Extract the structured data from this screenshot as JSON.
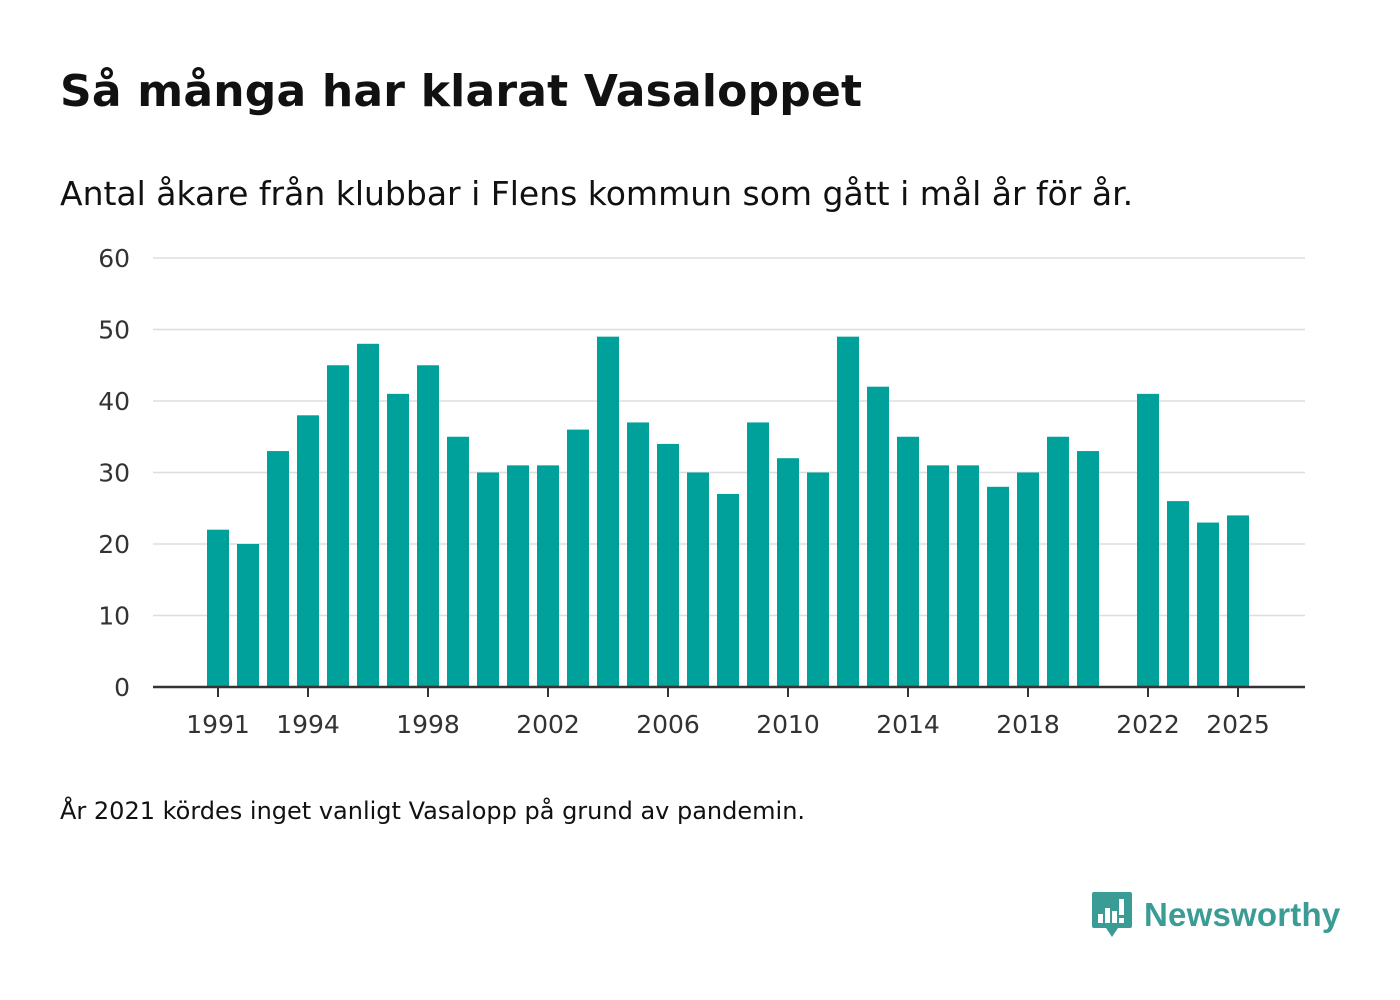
{
  "header": {
    "title": "Så många har klarat Vasaloppet",
    "subtitle": "Antal åkare från klubbar i Flens kommun som gått i mål år för år."
  },
  "footnote": "År 2021 kördes inget vanligt Vasalopp på grund av pandemin.",
  "brand": {
    "name": "Newsworthy",
    "logo_icon": "newsworthy-logo-icon",
    "color": "#3a9c94"
  },
  "colors": {
    "bar": "#00a19a",
    "grid": "#dddddd",
    "axis": "#333333"
  },
  "chart_data": {
    "type": "bar",
    "title": "Så många har klarat Vasaloppet",
    "subtitle": "Antal åkare från klubbar i Flens kommun som gått i mål år för år.",
    "xlabel": "",
    "ylabel": "",
    "ylim": [
      0,
      60
    ],
    "yticks": [
      0,
      10,
      20,
      30,
      40,
      50,
      60
    ],
    "xticks": [
      1991,
      1994,
      1998,
      2002,
      2006,
      2010,
      2014,
      2018,
      2022,
      2025
    ],
    "grid": true,
    "categories": [
      1991,
      1992,
      1993,
      1994,
      1995,
      1996,
      1997,
      1998,
      1999,
      2000,
      2001,
      2002,
      2003,
      2004,
      2005,
      2006,
      2007,
      2008,
      2009,
      2010,
      2011,
      2012,
      2013,
      2014,
      2015,
      2016,
      2017,
      2018,
      2019,
      2020,
      2021,
      2022,
      2023,
      2024,
      2025
    ],
    "values": [
      22,
      20,
      33,
      38,
      45,
      48,
      41,
      45,
      35,
      30,
      31,
      31,
      36,
      49,
      37,
      34,
      30,
      27,
      37,
      32,
      30,
      49,
      42,
      35,
      31,
      31,
      28,
      30,
      35,
      33,
      null,
      41,
      26,
      23,
      24
    ]
  }
}
